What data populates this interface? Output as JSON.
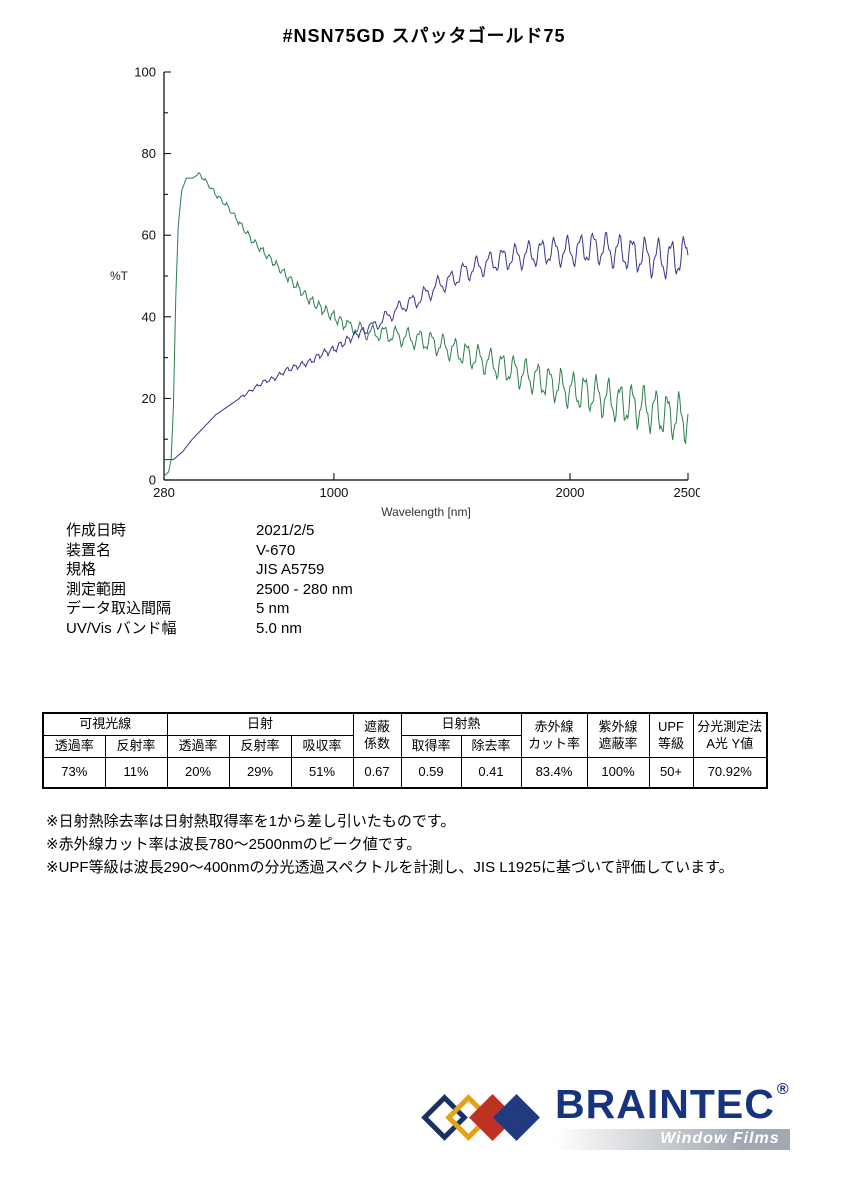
{
  "title": "#NSN75GD  スパッタゴールド75",
  "chart_data": {
    "type": "line",
    "title": "",
    "xlabel": "Wavelength [nm]",
    "ylabel": "%T",
    "xlim": [
      280,
      2500
    ],
    "ylim": [
      0,
      100
    ],
    "x_ticks": [
      280,
      1000,
      2000,
      2500
    ],
    "y_ticks": [
      0,
      20,
      40,
      60,
      80,
      100
    ],
    "y_minor_ticks": [
      10,
      30,
      50,
      70,
      90
    ],
    "grid": false,
    "legend": "none",
    "step_nm": 5,
    "series": [
      {
        "name": "transmittance-spectrum",
        "color": "#2d7f4e",
        "points": [
          [
            280,
            1
          ],
          [
            300,
            2
          ],
          [
            310,
            5
          ],
          [
            320,
            18
          ],
          [
            330,
            45
          ],
          [
            340,
            62
          ],
          [
            355,
            71
          ],
          [
            375,
            74
          ],
          [
            400,
            74
          ],
          [
            430,
            75
          ],
          [
            460,
            73
          ],
          [
            500,
            70
          ],
          [
            550,
            67
          ],
          [
            600,
            63
          ],
          [
            650,
            59
          ],
          [
            700,
            56
          ],
          [
            750,
            53
          ],
          [
            800,
            50
          ],
          [
            850,
            47
          ],
          [
            900,
            44
          ],
          [
            950,
            42
          ],
          [
            1000,
            40
          ],
          [
            1050,
            38
          ],
          [
            1100,
            37
          ],
          [
            1150,
            36
          ],
          [
            1200,
            36
          ],
          [
            1300,
            35
          ],
          [
            1400,
            34
          ],
          [
            1500,
            32
          ],
          [
            1600,
            30
          ],
          [
            1700,
            28
          ],
          [
            1800,
            26
          ],
          [
            1900,
            24
          ],
          [
            2000,
            22
          ],
          [
            2100,
            21
          ],
          [
            2200,
            19
          ],
          [
            2300,
            18
          ],
          [
            2400,
            16
          ],
          [
            2500,
            15
          ]
        ],
        "fringes": [
          {
            "from": 420,
            "to": 1050,
            "period": 30,
            "amp_start": 0.4,
            "amp_end": 1.3
          },
          {
            "from": 1050,
            "to": 2500,
            "period": 50,
            "amp_start": 1.3,
            "amp_end": 5.0
          }
        ]
      },
      {
        "name": "reflectance-spectrum",
        "color": "#35358c",
        "points": [
          [
            280,
            5
          ],
          [
            320,
            5
          ],
          [
            360,
            7
          ],
          [
            400,
            10
          ],
          [
            450,
            13
          ],
          [
            500,
            16
          ],
          [
            550,
            18
          ],
          [
            600,
            20
          ],
          [
            650,
            22
          ],
          [
            700,
            24
          ],
          [
            750,
            25
          ],
          [
            800,
            27
          ],
          [
            850,
            28
          ],
          [
            900,
            29
          ],
          [
            950,
            31
          ],
          [
            1000,
            32
          ],
          [
            1050,
            34
          ],
          [
            1100,
            36
          ],
          [
            1150,
            37
          ],
          [
            1200,
            39
          ],
          [
            1250,
            41
          ],
          [
            1300,
            43
          ],
          [
            1350,
            44
          ],
          [
            1400,
            46
          ],
          [
            1450,
            48
          ],
          [
            1500,
            49
          ],
          [
            1550,
            51
          ],
          [
            1600,
            52
          ],
          [
            1700,
            54
          ],
          [
            1800,
            55
          ],
          [
            1900,
            56
          ],
          [
            2000,
            56
          ],
          [
            2100,
            57
          ],
          [
            2200,
            56
          ],
          [
            2300,
            55
          ],
          [
            2400,
            54
          ],
          [
            2500,
            55
          ]
        ],
        "fringes": [
          {
            "from": 600,
            "to": 1150,
            "period": 32,
            "amp_start": 0.3,
            "amp_end": 1.0
          },
          {
            "from": 1150,
            "to": 2500,
            "period": 55,
            "amp_start": 1.2,
            "amp_end": 4.2
          }
        ]
      }
    ]
  },
  "metadata": {
    "rows": [
      {
        "label": "作成日時",
        "value": "2021/2/5"
      },
      {
        "label": "装置名",
        "value": "V-670"
      },
      {
        "label": "規格",
        "value": "JIS A5759"
      },
      {
        "label": "測定範囲",
        "value": "2500 - 280 nm"
      },
      {
        "label": "データ取込間隔",
        "value": "5 nm"
      },
      {
        "label": "UV/Vis バンド幅",
        "value": "5.0 nm"
      }
    ]
  },
  "results_table": {
    "group_row": [
      {
        "label": "可視光線"
      },
      {
        "label": "日射"
      },
      {
        "label": "遮蔽",
        "label2": "係数"
      },
      {
        "label": "日射熱"
      },
      {
        "label": "赤外線",
        "label2": "カット率"
      },
      {
        "label": "紫外線",
        "label2": "遮蔽率"
      },
      {
        "label": "UPF",
        "label2": "等級"
      },
      {
        "label": "分光測定法",
        "label2": "A光 Y値"
      }
    ],
    "sub_row": [
      "透過率",
      "反射率",
      "透過率",
      "反射率",
      "吸収率",
      "取得率",
      "除去率"
    ],
    "values": [
      "73%",
      "11%",
      "20%",
      "29%",
      "51%",
      "0.67",
      "0.59",
      "0.41",
      "83.4%",
      "100%",
      "50+",
      "70.92%"
    ]
  },
  "footnotes": [
    "※日射熱除去率は日射熱取得率を1から差し引いたものです。",
    "※赤外線カット率は波長780〜2500nmのピーク値です。",
    "※UPF等級は波長290〜400nmの分光透過スペクトルを計測し、JIS L1925に基づいて評価しています。"
  ],
  "logo": {
    "brand": "BRAINTEC",
    "registered_mark": "®",
    "tagline": "Window Films",
    "brand_color": "#16337d",
    "tagline_color": "#9199a3",
    "diamonds": [
      {
        "name": "navy-outline-diamond",
        "color": "#1c2f63",
        "filled": false
      },
      {
        "name": "gold-outline-diamond",
        "color": "#e2a21c",
        "filled": false
      },
      {
        "name": "red-solid-diamond",
        "color": "#bc3324",
        "filled": true
      },
      {
        "name": "navy-solid-diamond",
        "color": "#233a80",
        "filled": true
      }
    ]
  }
}
